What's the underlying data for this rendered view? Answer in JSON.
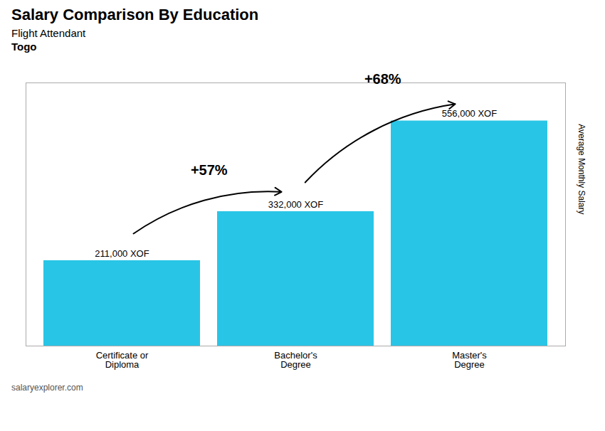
{
  "chart_data": {
    "type": "bar",
    "title": "Salary Comparison By Education",
    "subtitle": [
      "Flight Attendant",
      "Togo"
    ],
    "caption": "salaryexplorer.com",
    "ylabel": "Average Monthly Salary",
    "categories": [
      "Certificate or\nDiploma",
      "Bachelor's\nDegree",
      "Master's\nDegree"
    ],
    "values": [
      211000,
      332000,
      556000
    ],
    "value_labels": [
      "211,000 XOF",
      "332,000 XOF",
      "556,000 XOF"
    ],
    "data_labels": true,
    "annotations": [
      {
        "text": "+57%",
        "from": "Certificate or\nDiploma",
        "to": "Bachelor's\nDegree"
      },
      {
        "text": "+68%",
        "from": "Bachelor's\nDegree",
        "to": "Master's\nDegree"
      }
    ],
    "color": "#29c5e6",
    "ylim": [
      0,
      650000
    ],
    "tick_labels": "x",
    "grid": false
  }
}
